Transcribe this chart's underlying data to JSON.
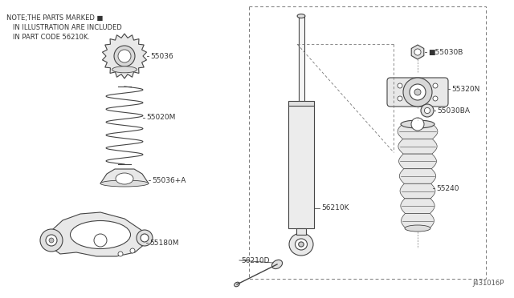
{
  "background_color": "#ffffff",
  "line_color": "#444444",
  "text_color": "#333333",
  "note_lines": [
    "NOTE;THE PARTS MARKED ■",
    "   IN ILLUSTRATION ARE INCLUDED",
    "   IN PART CODE 56210K."
  ],
  "fig_width": 6.4,
  "fig_height": 3.72,
  "dpi": 100
}
